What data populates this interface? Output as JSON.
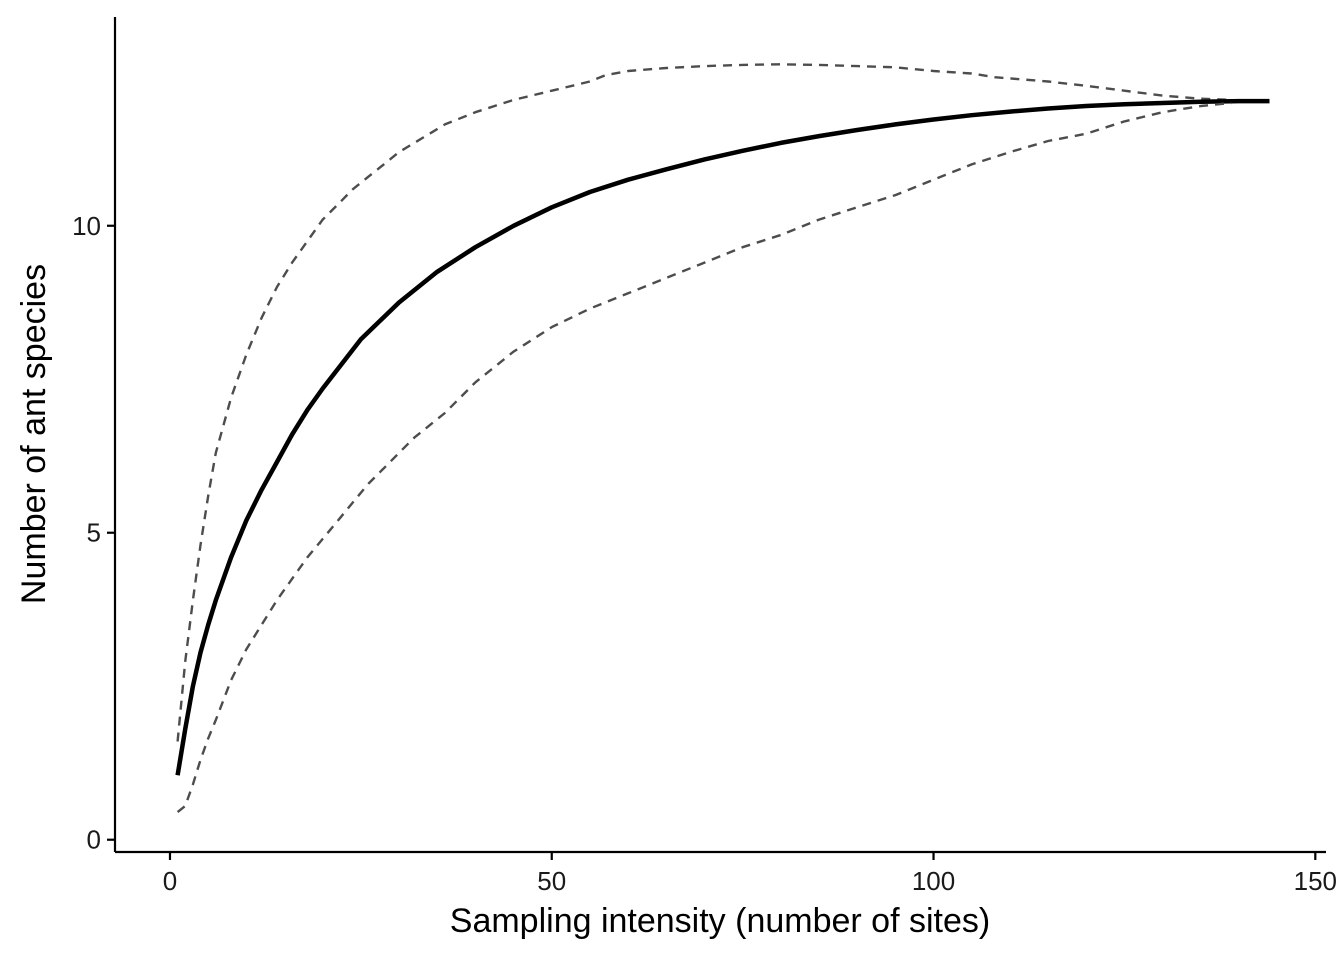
{
  "chart_data": {
    "type": "line",
    "title": "",
    "xlabel": "Sampling intensity (number of sites)",
    "ylabel": "Number of ant species",
    "xlim": [
      -7.2,
      151.4
    ],
    "ylim": [
      -0.2,
      13.4
    ],
    "x_ticks": [
      0,
      50,
      100,
      150
    ],
    "y_ticks": [
      0,
      5,
      10
    ],
    "grid": false,
    "legend": "none",
    "series": [
      {
        "role": "upper-bound",
        "style": "dashed",
        "color": "#4d4d4d",
        "x": [
          1,
          2,
          3,
          4,
          5,
          6,
          8,
          10,
          12,
          14,
          16,
          18,
          20,
          22,
          24,
          26,
          28,
          30,
          32,
          34,
          36,
          40,
          45,
          50,
          55,
          57,
          60,
          65,
          70,
          75,
          80,
          85,
          90,
          95,
          100,
          105,
          108,
          115,
          120,
          125,
          130,
          135,
          139
        ],
        "y": [
          1.6,
          2.9,
          3.9,
          4.8,
          5.6,
          6.3,
          7.2,
          7.9,
          8.5,
          9.0,
          9.4,
          9.75,
          10.1,
          10.35,
          10.6,
          10.8,
          11.0,
          11.2,
          11.35,
          11.5,
          11.65,
          11.85,
          12.05,
          12.2,
          12.35,
          12.45,
          12.52,
          12.57,
          12.6,
          12.62,
          12.63,
          12.62,
          12.6,
          12.58,
          12.52,
          12.48,
          12.42,
          12.35,
          12.28,
          12.2,
          12.12,
          12.07,
          12.05
        ]
      },
      {
        "role": "mean",
        "style": "solid",
        "color": "#000000",
        "x": [
          1,
          2,
          3,
          4,
          5,
          6,
          8,
          10,
          12,
          14,
          16,
          18,
          20,
          25,
          30,
          35,
          40,
          45,
          50,
          55,
          60,
          65,
          70,
          75,
          80,
          85,
          90,
          95,
          100,
          105,
          110,
          115,
          120,
          125,
          130,
          135,
          140,
          144
        ],
        "y": [
          1.05,
          1.8,
          2.5,
          3.05,
          3.5,
          3.9,
          4.6,
          5.2,
          5.7,
          6.15,
          6.6,
          7.0,
          7.35,
          8.15,
          8.75,
          9.25,
          9.65,
          10.0,
          10.3,
          10.55,
          10.75,
          10.92,
          11.08,
          11.22,
          11.35,
          11.46,
          11.56,
          11.65,
          11.73,
          11.8,
          11.86,
          11.91,
          11.95,
          11.98,
          12.0,
          12.02,
          12.03,
          12.03
        ]
      },
      {
        "role": "lower-bound",
        "style": "dashed",
        "color": "#4d4d4d",
        "x": [
          1,
          2,
          3,
          4,
          5,
          6,
          8,
          10,
          12,
          14,
          16,
          18,
          20,
          22,
          24,
          26,
          28,
          30,
          32,
          34,
          36,
          40,
          45,
          50,
          55,
          60,
          65,
          70,
          75,
          80,
          85,
          90,
          95,
          100,
          105,
          110,
          115,
          120,
          125,
          130,
          135,
          139
        ],
        "y": [
          0.45,
          0.55,
          0.9,
          1.3,
          1.65,
          1.95,
          2.6,
          3.1,
          3.5,
          3.9,
          4.25,
          4.6,
          4.9,
          5.2,
          5.5,
          5.8,
          6.05,
          6.3,
          6.55,
          6.75,
          6.95,
          7.45,
          7.95,
          8.35,
          8.65,
          8.9,
          9.15,
          9.4,
          9.65,
          9.85,
          10.1,
          10.3,
          10.5,
          10.75,
          11.0,
          11.2,
          11.38,
          11.5,
          11.7,
          11.85,
          11.95,
          12.0
        ]
      }
    ]
  }
}
